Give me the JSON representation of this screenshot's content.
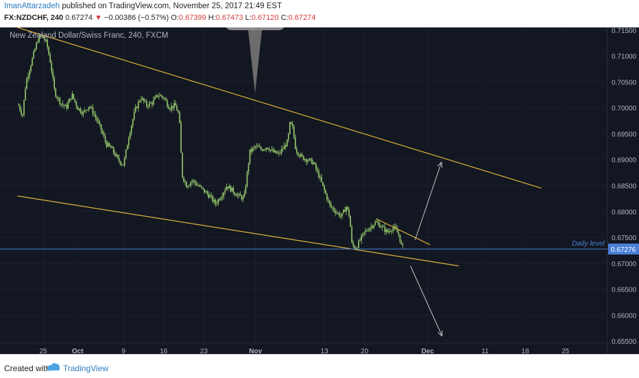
{
  "header": {
    "author": "ImanAttarzadeh",
    "published": "published on TradingView.com, November 25, 2017 21:49 EST",
    "symbol": "FX:NZDCHF, 240",
    "last": "0.67274",
    "change_arrow": "▼",
    "change": "−0.00386 (−0.57%)",
    "o_label": "O:",
    "o": "0.67399",
    "h_label": "H:",
    "h": "0.67473",
    "l_label": "L:",
    "l": "0.67120",
    "c_label": "C:",
    "c": "0.67274"
  },
  "footer": {
    "created": "Created with",
    "brand": "TradingView",
    "logo_icon": "tradingview-logo-icon"
  },
  "colors": {
    "background": "#131722",
    "candle": "#9bcf6f",
    "trendline": "#e0b43a",
    "level": "#4a7fd6",
    "arrow": "#c8c8c8",
    "price_tag": "#4a7fd6",
    "header_red": "#d23a3a"
  },
  "chart_data": {
    "type": "candlestick",
    "title": "New Zealand Dollar/Swiss Franc, 240, FXCM",
    "ylim": [
      0.6545,
      0.7155
    ],
    "y_ticks": [
      "0.71500",
      "0.71000",
      "0.70500",
      "0.70000",
      "0.69500",
      "0.69000",
      "0.68500",
      "0.68000",
      "0.67500",
      "0.67000",
      "0.66500",
      "0.66000",
      "0.65500"
    ],
    "x_ticks": [
      {
        "label": "25",
        "x": 0
      },
      {
        "label": "Oct",
        "x": 6
      },
      {
        "label": "9",
        "x": 14
      },
      {
        "label": "16",
        "x": 21
      },
      {
        "label": "23",
        "x": 28
      },
      {
        "label": "Nov",
        "x": 37
      },
      {
        "label": "13",
        "x": 49
      },
      {
        "label": "20",
        "x": 56
      },
      {
        "label": "Dec",
        "x": 67
      },
      {
        "label": "11",
        "x": 77
      },
      {
        "label": "18",
        "x": 84
      },
      {
        "label": "25",
        "x": 91
      }
    ],
    "x_major": [
      "Oct",
      "Nov",
      "Dec"
    ],
    "price_path": [
      [
        -4.3,
        0.7005
      ],
      [
        -3.6,
        0.6985
      ],
      [
        -3,
        0.705
      ],
      [
        -2,
        0.709
      ],
      [
        -1,
        0.713
      ],
      [
        -0.3,
        0.714
      ],
      [
        0.6,
        0.7125
      ],
      [
        1.3,
        0.7085
      ],
      [
        2,
        0.703
      ],
      [
        3,
        0.701
      ],
      [
        4,
        0.7
      ],
      [
        5,
        0.7025
      ],
      [
        6,
        0.7
      ],
      [
        7,
        0.699
      ],
      [
        8,
        0.7005
      ],
      [
        9,
        0.6985
      ],
      [
        10,
        0.696
      ],
      [
        11,
        0.693
      ],
      [
        12,
        0.692
      ],
      [
        13,
        0.69
      ],
      [
        14,
        0.689
      ],
      [
        15,
        0.695
      ],
      [
        16,
        0.6995
      ],
      [
        17,
        0.702
      ],
      [
        18,
        0.7005
      ],
      [
        19,
        0.701
      ],
      [
        20,
        0.7025
      ],
      [
        21,
        0.702
      ],
      [
        22,
        0.7
      ],
      [
        23,
        0.7005
      ],
      [
        23.7,
        0.6985
      ],
      [
        24.2,
        0.687
      ],
      [
        25,
        0.685
      ],
      [
        26,
        0.686
      ],
      [
        27,
        0.685
      ],
      [
        28,
        0.684
      ],
      [
        29,
        0.683
      ],
      [
        30,
        0.6815
      ],
      [
        31,
        0.683
      ],
      [
        32,
        0.685
      ],
      [
        33,
        0.684
      ],
      [
        34,
        0.683
      ],
      [
        35,
        0.6825
      ],
      [
        36,
        0.6915
      ],
      [
        37,
        0.6925
      ],
      [
        38,
        0.692
      ],
      [
        39,
        0.6925
      ],
      [
        40,
        0.6915
      ],
      [
        41,
        0.691
      ],
      [
        42,
        0.6925
      ],
      [
        42.6,
        0.6935
      ],
      [
        43,
        0.697
      ],
      [
        43.5,
        0.696
      ],
      [
        44,
        0.692
      ],
      [
        45,
        0.6905
      ],
      [
        46,
        0.69
      ],
      [
        47,
        0.6895
      ],
      [
        48,
        0.687
      ],
      [
        49,
        0.684
      ],
      [
        50,
        0.681
      ],
      [
        51,
        0.68
      ],
      [
        52,
        0.679
      ],
      [
        52.8,
        0.681
      ],
      [
        53.4,
        0.679
      ],
      [
        53.8,
        0.6735
      ],
      [
        54.5,
        0.673
      ],
      [
        55,
        0.674
      ],
      [
        56,
        0.676
      ],
      [
        57,
        0.677
      ],
      [
        58,
        0.678
      ],
      [
        59,
        0.677
      ],
      [
        60,
        0.676
      ],
      [
        61,
        0.677
      ],
      [
        62,
        0.6755
      ],
      [
        62.4,
        0.6735
      ],
      [
        62.8,
        0.6728
      ]
    ],
    "trendlines": [
      {
        "name": "upper-channel",
        "from": [
          -4.5,
          0.7155
        ],
        "to": [
          86.8,
          0.6845
        ]
      },
      {
        "name": "lower-channel",
        "from": [
          -4.5,
          0.683
        ],
        "to": [
          72.4,
          0.6695
        ]
      },
      {
        "name": "wedge-top",
        "from": [
          58.2,
          0.6785
        ],
        "to": [
          67.4,
          0.6736
        ]
      }
    ],
    "arrows": [
      {
        "name": "up-arrow",
        "from": [
          64.8,
          0.6745
        ],
        "to": [
          69.4,
          0.6895
        ]
      },
      {
        "name": "down-arrow",
        "from": [
          64.0,
          0.6695
        ],
        "to": [
          69.5,
          0.656
        ]
      }
    ],
    "level": {
      "value": 0.67276,
      "label": "Daily level",
      "tag": "0.67276"
    }
  }
}
